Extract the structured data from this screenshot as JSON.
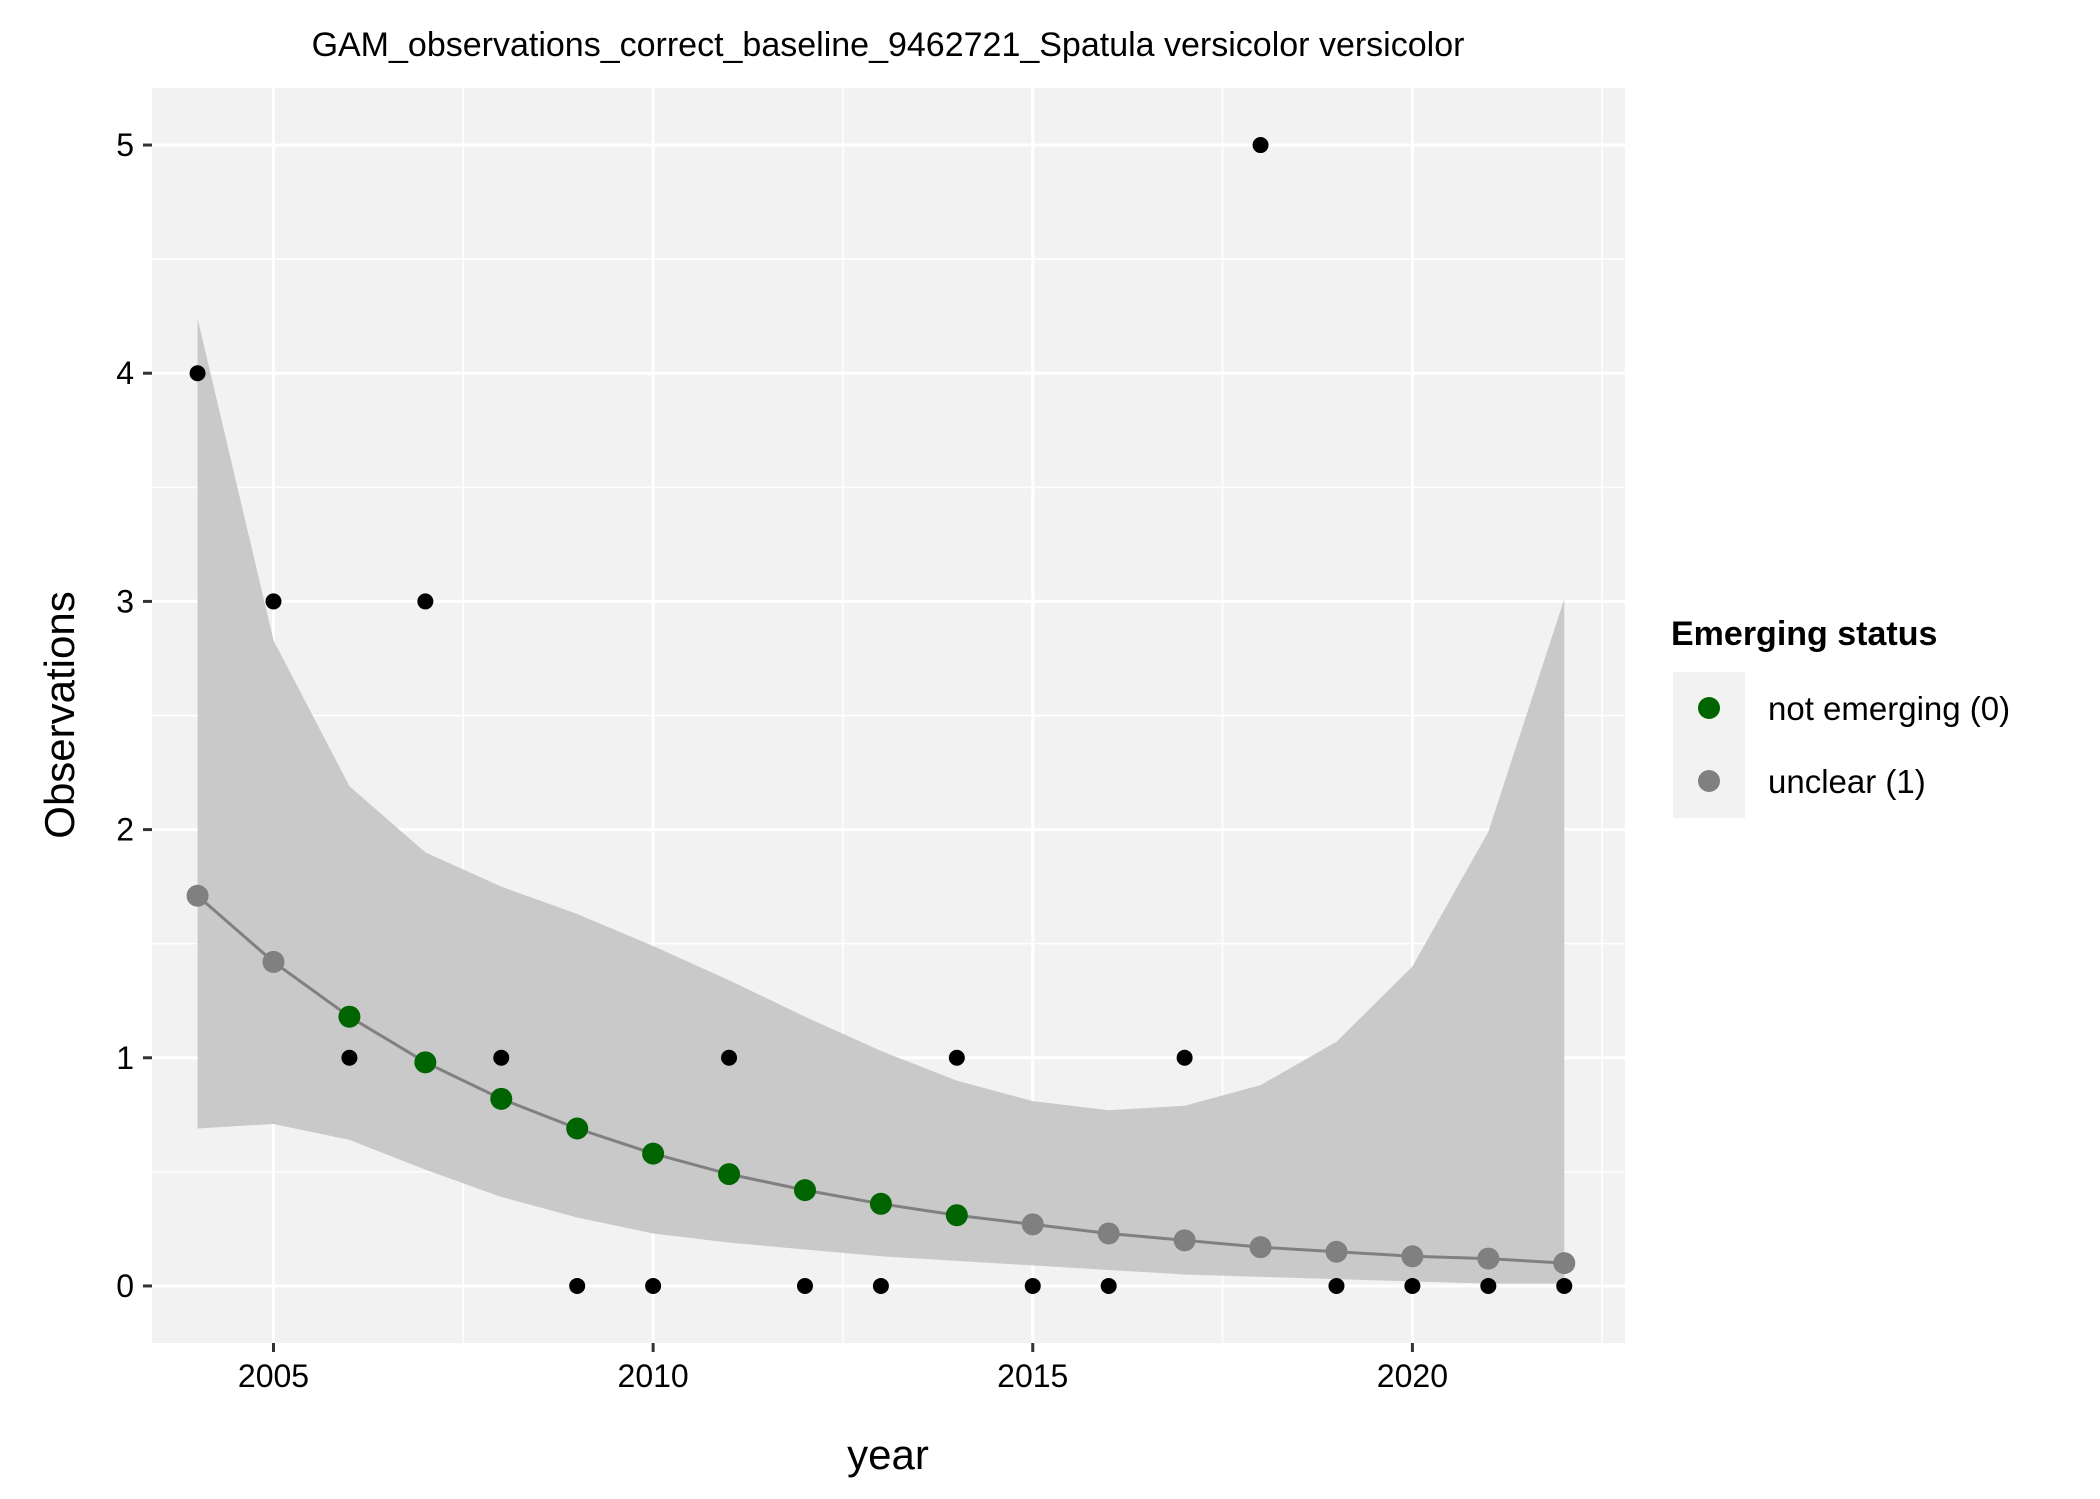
{
  "chart_data": {
    "type": "scatter",
    "title": "GAM_observations_correct_baseline_9462721_Spatula versicolor versicolor",
    "xlabel": "year",
    "ylabel": "Observations",
    "xlim": [
      2003.4,
      2022.8
    ],
    "ylim": [
      -0.25,
      5.25
    ],
    "x_ticks": [
      2005,
      2010,
      2015,
      2020
    ],
    "y_ticks": [
      0,
      1,
      2,
      3,
      4,
      5
    ],
    "grid": true,
    "legend_position": "right",
    "legend_title": "Emerging status",
    "legend": [
      {
        "label": "not emerging (0)",
        "color": "#006400"
      },
      {
        "label": "unclear (1)",
        "color": "#808080"
      }
    ],
    "observations": {
      "color": "#000000",
      "x": [
        2004,
        2005,
        2006,
        2007,
        2008,
        2009,
        2010,
        2011,
        2012,
        2013,
        2014,
        2015,
        2016,
        2017,
        2018,
        2019,
        2020,
        2021,
        2022
      ],
      "y": [
        4,
        3,
        1,
        3,
        1,
        0,
        0,
        1,
        0,
        0,
        1,
        0,
        0,
        1,
        5,
        0,
        0,
        0,
        0
      ]
    },
    "fit": {
      "line_color": "#808080",
      "band_color": "#c6c6c6",
      "x": [
        2004,
        2005,
        2006,
        2007,
        2008,
        2009,
        2010,
        2011,
        2012,
        2013,
        2014,
        2015,
        2016,
        2017,
        2018,
        2019,
        2020,
        2021,
        2022
      ],
      "y": [
        1.71,
        1.42,
        1.18,
        0.98,
        0.82,
        0.69,
        0.58,
        0.49,
        0.42,
        0.36,
        0.31,
        0.27,
        0.23,
        0.2,
        0.17,
        0.15,
        0.13,
        0.12,
        0.1
      ],
      "lower": [
        0.69,
        0.71,
        0.64,
        0.51,
        0.39,
        0.3,
        0.23,
        0.19,
        0.16,
        0.13,
        0.11,
        0.09,
        0.07,
        0.05,
        0.04,
        0.03,
        0.02,
        0.01,
        0.01
      ],
      "upper": [
        4.24,
        2.83,
        2.19,
        1.9,
        1.75,
        1.63,
        1.49,
        1.34,
        1.18,
        1.03,
        0.9,
        0.81,
        0.77,
        0.79,
        0.88,
        1.07,
        1.4,
        1.99,
        3.01
      ],
      "status": [
        1,
        1,
        0,
        0,
        0,
        0,
        0,
        0,
        0,
        0,
        0,
        1,
        1,
        1,
        1,
        1,
        1,
        1,
        1
      ]
    }
  }
}
